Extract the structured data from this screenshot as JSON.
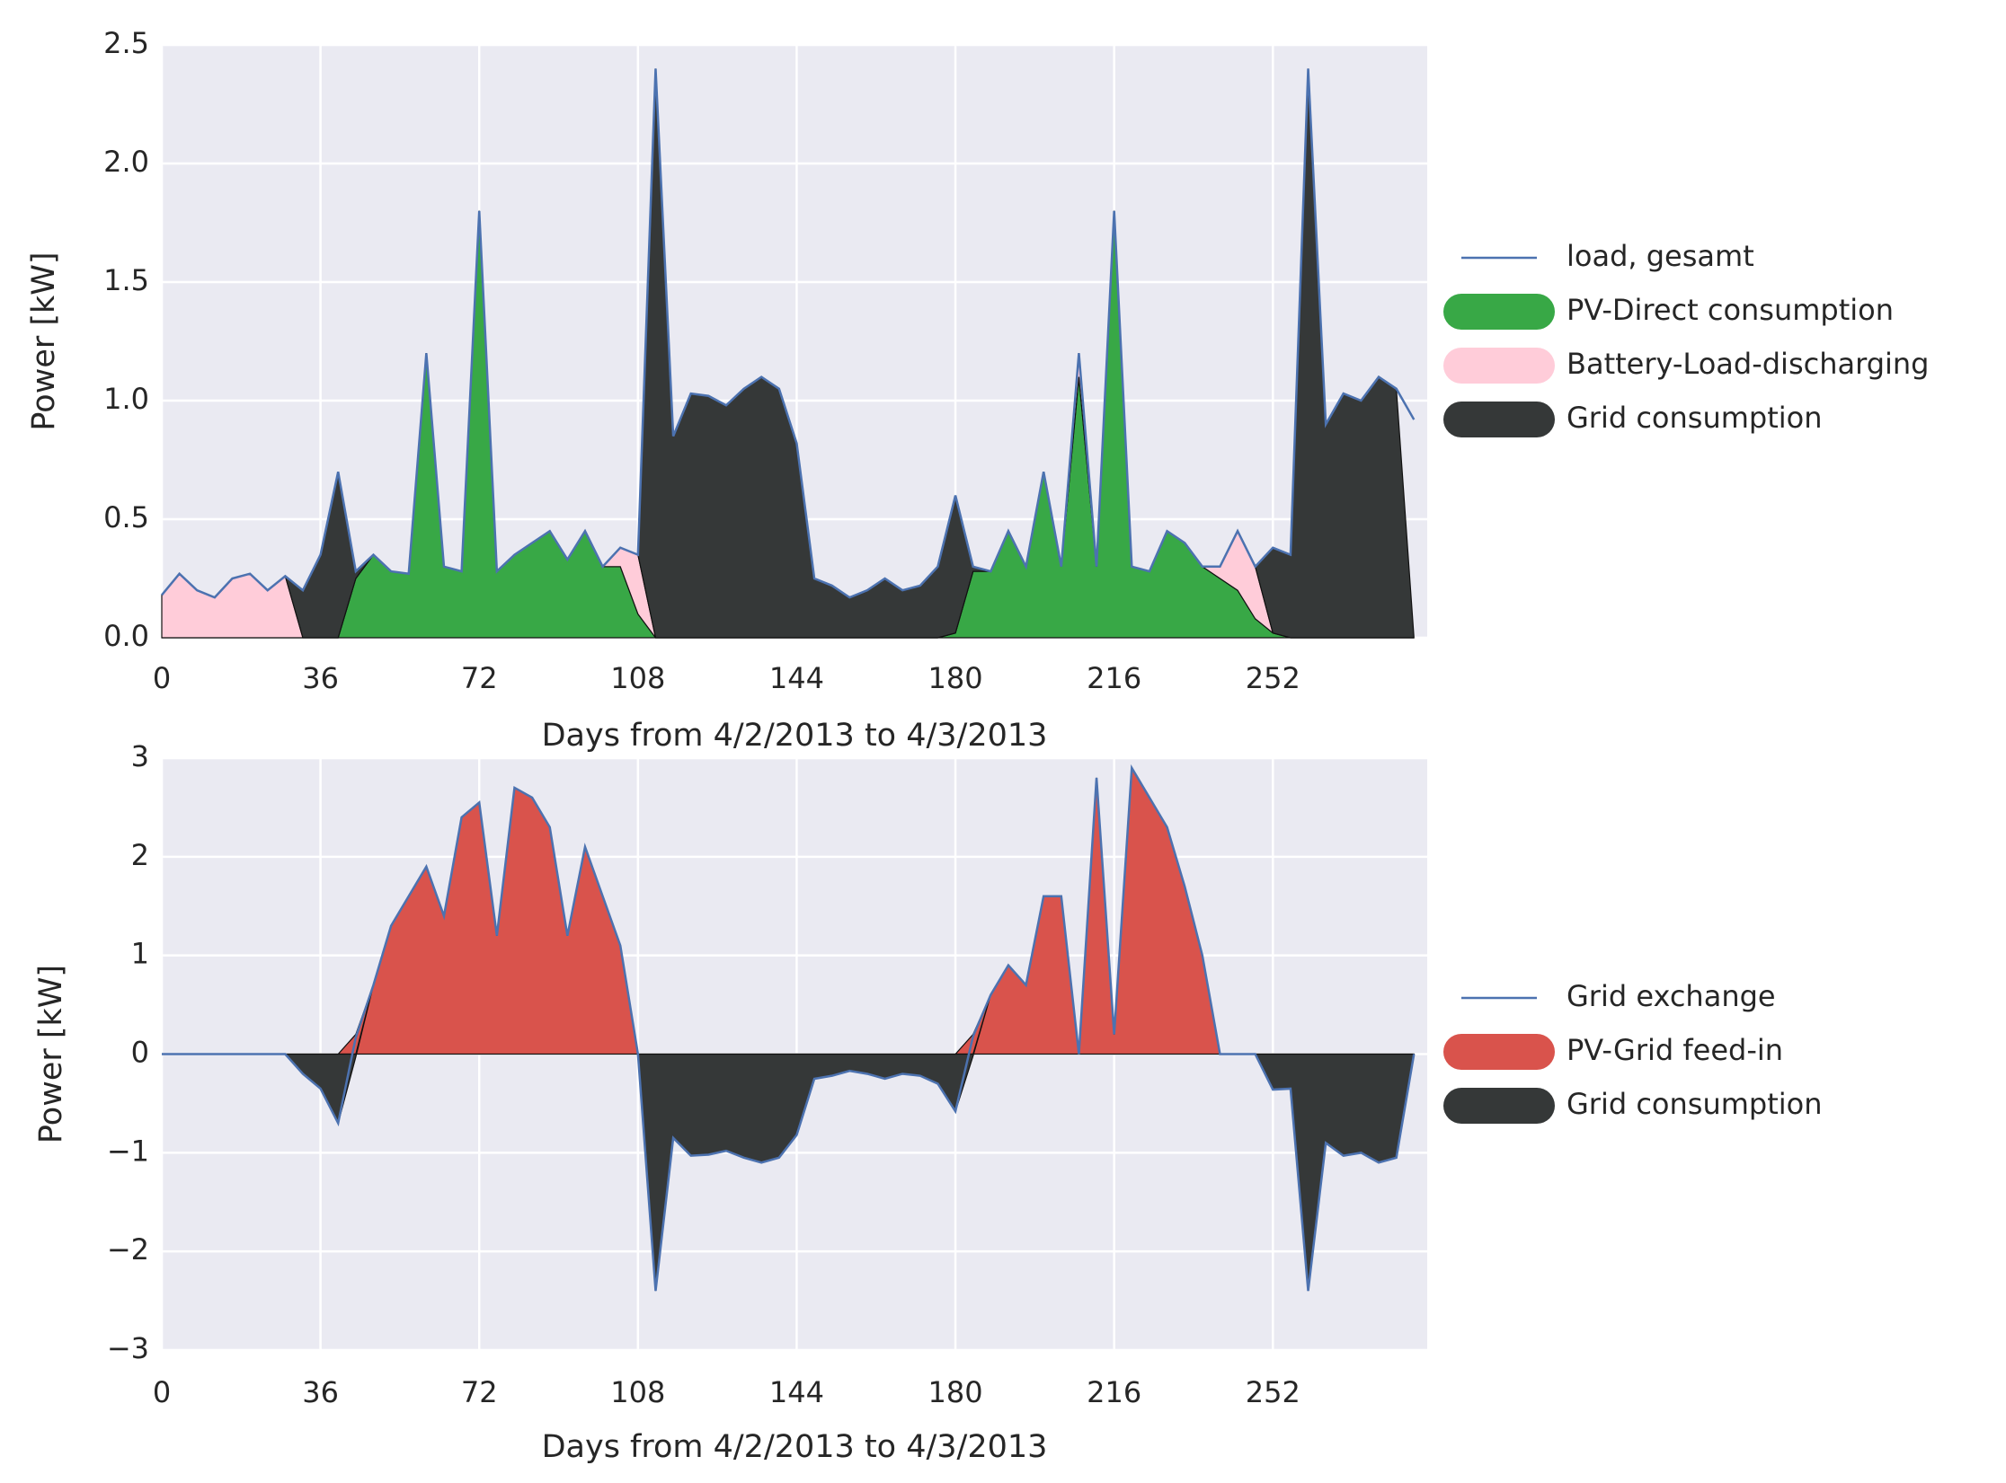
{
  "chart_data": [
    {
      "type": "area",
      "stacked": true,
      "grid": true,
      "legend": "right",
      "xlabel": "Days from 4/2/2013 to 4/3/2013",
      "ylabel": "Power [kW]",
      "xlim": [
        0,
        287
      ],
      "ylim": [
        0,
        2.5
      ],
      "xticks": [
        0,
        36,
        72,
        108,
        144,
        180,
        216,
        252
      ],
      "yticks": [
        {
          "value": 0,
          "label": "0.0"
        },
        0.5,
        {
          "value": 1,
          "label": "1.0"
        },
        1.5,
        {
          "value": 2,
          "label": "2.0"
        },
        2.5
      ],
      "x": [
        0,
        4,
        8,
        12,
        16,
        20,
        24,
        28,
        32,
        36,
        40,
        44,
        48,
        52,
        56,
        60,
        64,
        68,
        72,
        76,
        80,
        84,
        88,
        92,
        96,
        100,
        104,
        108,
        112,
        116,
        120,
        124,
        128,
        132,
        136,
        140,
        144,
        148,
        152,
        156,
        160,
        164,
        168,
        172,
        176,
        180,
        184,
        188,
        192,
        196,
        200,
        204,
        208,
        212,
        216,
        220,
        224,
        228,
        232,
        236,
        240,
        244,
        248,
        252,
        256,
        260,
        264,
        268,
        272,
        276,
        280,
        284
      ],
      "series": [
        {
          "name": "load, gesamt",
          "type": "line",
          "color": "#4c72b0",
          "values": [
            0.18,
            0.27,
            0.2,
            0.17,
            0.25,
            0.27,
            0.2,
            0.26,
            0.2,
            0.35,
            0.7,
            0.28,
            0.35,
            0.28,
            0.27,
            1.2,
            0.3,
            0.28,
            1.8,
            0.28,
            0.35,
            0.4,
            0.45,
            0.33,
            0.45,
            0.3,
            0.38,
            0.35,
            2.4,
            0.85,
            1.03,
            1.02,
            0.98,
            1.05,
            1.1,
            1.05,
            0.82,
            0.25,
            0.22,
            0.17,
            0.2,
            0.25,
            0.2,
            0.22,
            0.3,
            0.6,
            0.3,
            0.28,
            0.45,
            0.3,
            0.7,
            0.3,
            1.2,
            0.3,
            1.8,
            0.3,
            0.28,
            0.45,
            0.4,
            0.3,
            0.3,
            0.45,
            0.3,
            0.38,
            0.35,
            2.4,
            0.9,
            1.03,
            1.0,
            1.1,
            1.05,
            0.92
          ]
        },
        {
          "name": "PV-Direct consumption",
          "type": "area",
          "color": "#38a846",
          "values": [
            0,
            0,
            0,
            0,
            0,
            0,
            0,
            0,
            0,
            0,
            0,
            0.25,
            0.35,
            0.28,
            0.27,
            1.2,
            0.3,
            0.28,
            1.8,
            0.28,
            0.35,
            0.4,
            0.45,
            0.33,
            0.45,
            0.3,
            0.3,
            0.1,
            0,
            0,
            0,
            0,
            0,
            0,
            0,
            0,
            0,
            0,
            0,
            0,
            0,
            0,
            0,
            0,
            0,
            0.02,
            0.28,
            0.28,
            0.45,
            0.3,
            0.7,
            0.3,
            1.1,
            0.3,
            1.8,
            0.3,
            0.28,
            0.45,
            0.4,
            0.3,
            0.25,
            0.2,
            0.08,
            0.02,
            0,
            0,
            0,
            0,
            0,
            0,
            0,
            0
          ]
        },
        {
          "name": "Battery-Load-discharging",
          "type": "area",
          "color": "#ffccd9",
          "values": [
            0.18,
            0.27,
            0.2,
            0.17,
            0.25,
            0.27,
            0.2,
            0.26,
            0,
            0,
            0,
            0,
            0,
            0,
            0,
            0,
            0,
            0,
            0,
            0,
            0,
            0,
            0,
            0,
            0,
            0,
            0.08,
            0.25,
            0,
            0,
            0,
            0,
            0,
            0,
            0,
            0,
            0,
            0,
            0,
            0,
            0,
            0,
            0,
            0,
            0,
            0,
            0,
            0,
            0,
            0,
            0,
            0,
            0.1,
            0,
            0,
            0,
            0,
            0,
            0,
            0,
            0.05,
            0.25,
            0.22,
            0,
            0,
            0,
            0,
            0,
            0,
            0,
            0,
            0
          ]
        },
        {
          "name": "Grid consumption",
          "type": "area",
          "color": "#353838",
          "values": [
            0,
            0,
            0,
            0,
            0,
            0,
            0,
            0,
            0.2,
            0.35,
            0.7,
            0.03,
            0,
            0,
            0,
            0,
            0,
            0,
            0,
            0,
            0,
            0,
            0,
            0,
            0,
            0,
            0,
            0,
            2.4,
            0.85,
            1.03,
            1.02,
            0.98,
            1.05,
            1.1,
            1.05,
            0.82,
            0.25,
            0.22,
            0.17,
            0.2,
            0.25,
            0.2,
            0.22,
            0.3,
            0.58,
            0.02,
            0,
            0,
            0,
            0,
            0,
            0,
            0,
            0,
            0,
            0,
            0,
            0,
            0,
            0,
            0,
            0,
            0.36,
            0.35,
            2.4,
            0.9,
            1.03,
            1.0,
            1.1,
            1.05,
            0
          ]
        }
      ]
    },
    {
      "type": "area",
      "stacked": true,
      "grid": true,
      "legend": "right",
      "xlabel": "Days from 4/2/2013 to 4/3/2013",
      "ylabel": "Power [kW]",
      "xlim": [
        0,
        287
      ],
      "ylim": [
        -3,
        3
      ],
      "xticks": [
        0,
        36,
        72,
        108,
        144,
        180,
        216,
        252
      ],
      "yticks": [
        {
          "value": -3,
          "label": "−3"
        },
        {
          "value": -2,
          "label": "−2"
        },
        {
          "value": -1,
          "label": "−1"
        },
        0,
        1,
        2,
        3
      ],
      "x": [
        0,
        4,
        8,
        12,
        16,
        20,
        24,
        28,
        32,
        36,
        40,
        44,
        48,
        52,
        56,
        60,
        64,
        68,
        72,
        76,
        80,
        84,
        88,
        92,
        96,
        100,
        104,
        108,
        112,
        116,
        120,
        124,
        128,
        132,
        136,
        140,
        144,
        148,
        152,
        156,
        160,
        164,
        168,
        172,
        176,
        180,
        184,
        188,
        192,
        196,
        200,
        204,
        208,
        212,
        216,
        220,
        224,
        228,
        232,
        236,
        240,
        244,
        248,
        252,
        256,
        260,
        264,
        268,
        272,
        276,
        280,
        284
      ],
      "series": [
        {
          "name": "Grid exchange",
          "type": "line",
          "color": "#4c72b0",
          "values": [
            0,
            0,
            0,
            0,
            0,
            0,
            0,
            0,
            -0.2,
            -0.35,
            -0.7,
            0.17,
            0.7,
            1.3,
            1.6,
            1.9,
            1.4,
            2.4,
            2.55,
            1.2,
            2.7,
            2.6,
            2.3,
            1.2,
            2.1,
            1.6,
            1.1,
            0,
            -2.4,
            -0.85,
            -1.03,
            -1.02,
            -0.98,
            -1.05,
            -1.1,
            -1.05,
            -0.82,
            -0.25,
            -0.22,
            -0.17,
            -0.2,
            -0.25,
            -0.2,
            -0.22,
            -0.3,
            -0.58,
            0.18,
            0.6,
            0.9,
            0.7,
            1.6,
            1.6,
            0,
            2.8,
            0.2,
            2.9,
            2.6,
            2.3,
            1.7,
            1.0,
            0,
            0,
            0,
            -0.36,
            -0.35,
            -2.4,
            -0.9,
            -1.03,
            -1,
            -1.1,
            -1.05,
            0
          ]
        },
        {
          "name": "PV-Grid feed-in",
          "type": "area",
          "color": "#d9534c",
          "values": [
            0,
            0,
            0,
            0,
            0,
            0,
            0,
            0,
            0,
            0,
            0,
            0.2,
            0.7,
            1.3,
            1.6,
            1.9,
            1.4,
            2.4,
            2.55,
            1.2,
            2.7,
            2.6,
            2.3,
            1.2,
            2.1,
            1.6,
            1.1,
            0,
            0,
            0,
            0,
            0,
            0,
            0,
            0,
            0,
            0,
            0,
            0,
            0,
            0,
            0,
            0,
            0,
            0,
            0,
            0.2,
            0.6,
            0.9,
            0.7,
            1.6,
            1.6,
            0,
            2.8,
            0.2,
            2.9,
            2.6,
            2.3,
            1.7,
            1.0,
            0,
            0,
            0,
            0,
            0,
            0,
            0,
            0,
            0,
            0,
            0,
            0
          ]
        },
        {
          "name": "Grid consumption",
          "type": "area",
          "color": "#353838",
          "values": [
            0,
            0,
            0,
            0,
            0,
            0,
            0,
            0,
            -0.2,
            -0.35,
            -0.7,
            -0.03,
            0,
            0,
            0,
            0,
            0,
            0,
            0,
            0,
            0,
            0,
            0,
            0,
            0,
            0,
            0,
            0,
            -2.4,
            -0.85,
            -1.03,
            -1.02,
            -0.98,
            -1.05,
            -1.1,
            -1.05,
            -0.82,
            -0.25,
            -0.22,
            -0.17,
            -0.2,
            -0.25,
            -0.2,
            -0.22,
            -0.3,
            -0.58,
            -0.02,
            0,
            0,
            0,
            0,
            0,
            0,
            0,
            0,
            0,
            0,
            0,
            0,
            0,
            0,
            0,
            0,
            -0.36,
            -0.35,
            -2.4,
            -0.9,
            -1.03,
            -1,
            -1.1,
            -1.05,
            0
          ]
        }
      ]
    }
  ]
}
